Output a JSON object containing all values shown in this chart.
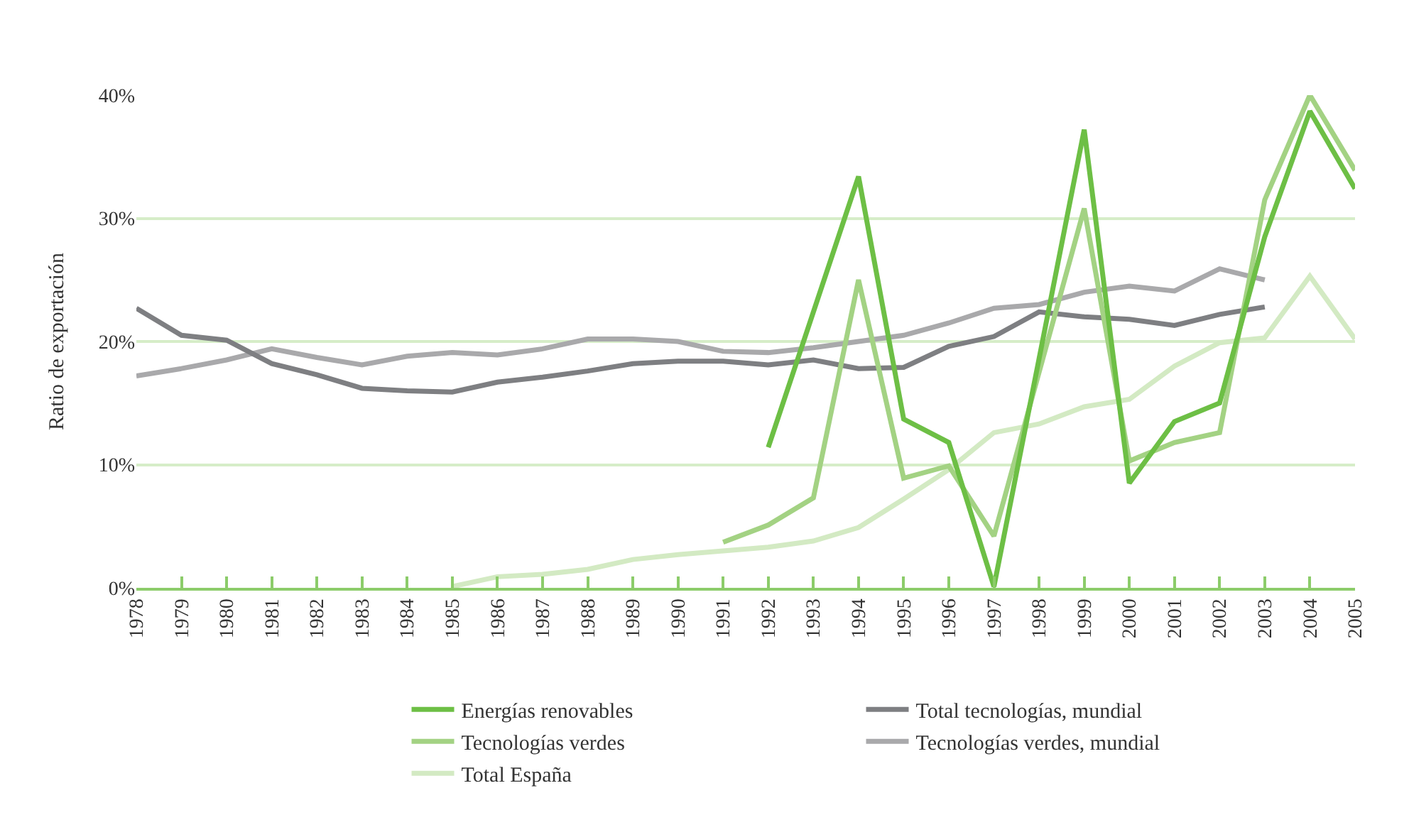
{
  "chart_data": {
    "type": "line",
    "ylabel": "Ratio de exportación",
    "x": [
      1978,
      1979,
      1980,
      1981,
      1982,
      1983,
      1984,
      1985,
      1986,
      1987,
      1988,
      1989,
      1990,
      1991,
      1992,
      1993,
      1994,
      1995,
      1996,
      1997,
      1998,
      1999,
      2000,
      2001,
      2002,
      2003,
      2004,
      2005
    ],
    "series": [
      {
        "name": "Energías renovables",
        "color": "#6dbf45",
        "values": [
          null,
          null,
          null,
          null,
          null,
          null,
          null,
          null,
          null,
          null,
          null,
          null,
          null,
          null,
          11.4,
          22.4,
          33.4,
          13.7,
          11.8,
          0.1,
          18.6,
          37.2,
          8.5,
          13.5,
          15.0,
          28.5,
          38.7,
          32.4
        ]
      },
      {
        "name": "Tecnologías verdes",
        "color": "#a3d283",
        "values": [
          null,
          null,
          null,
          null,
          null,
          null,
          null,
          null,
          null,
          null,
          null,
          null,
          null,
          3.7,
          5.1,
          7.3,
          25.0,
          8.9,
          9.9,
          4.2,
          17.5,
          30.8,
          10.3,
          11.8,
          12.6,
          31.5,
          40.0,
          33.9
        ]
      },
      {
        "name": "Total España",
        "color": "#d3eac3",
        "values": [
          null,
          null,
          null,
          null,
          null,
          null,
          null,
          0.1,
          0.9,
          1.1,
          1.5,
          2.3,
          2.7,
          3.0,
          3.3,
          3.8,
          4.9,
          7.2,
          9.6,
          12.6,
          13.3,
          14.7,
          15.3,
          18.0,
          19.9,
          20.3,
          25.3,
          20.2
        ]
      },
      {
        "name": "Total tecnologías, mundial",
        "color": "#7e7f82",
        "values": [
          22.7,
          20.5,
          20.1,
          18.2,
          17.3,
          16.2,
          16.0,
          15.9,
          16.7,
          17.1,
          17.6,
          18.2,
          18.4,
          18.4,
          18.1,
          18.5,
          17.8,
          17.9,
          19.6,
          20.4,
          22.4,
          22.0,
          21.8,
          21.3,
          22.2,
          22.8,
          null,
          null
        ]
      },
      {
        "name": "Tecnologías verdes, mundial",
        "color": "#a9a9ab",
        "values": [
          17.2,
          17.8,
          18.5,
          19.4,
          18.7,
          18.1,
          18.8,
          19.1,
          18.9,
          19.4,
          20.2,
          20.2,
          20.0,
          19.2,
          19.1,
          19.5,
          20.0,
          20.5,
          21.5,
          22.7,
          23.0,
          24.0,
          24.5,
          24.1,
          25.9,
          25.0,
          null,
          null
        ]
      }
    ],
    "xlim": [
      1978,
      2005
    ],
    "xticks": [
      1978,
      1979,
      1980,
      1981,
      1982,
      1983,
      1984,
      1985,
      1986,
      1987,
      1988,
      1989,
      1990,
      1991,
      1992,
      1993,
      1994,
      1995,
      1996,
      1997,
      1998,
      1999,
      2000,
      2001,
      2002,
      2003,
      2004,
      2005
    ],
    "ylim": [
      0,
      40
    ],
    "yticks": [
      {
        "value": 0,
        "label": "0%"
      },
      {
        "value": 10,
        "label": "10%"
      },
      {
        "value": 20,
        "label": "20%"
      },
      {
        "value": 30,
        "label": "30%"
      },
      {
        "value": 40,
        "label": "40%"
      }
    ],
    "grid": "y",
    "legend": "bottom",
    "marker": "none",
    "line_style": "solid"
  }
}
